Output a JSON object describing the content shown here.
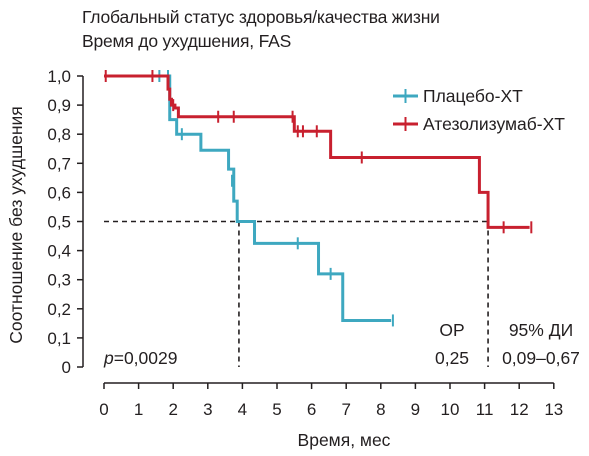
{
  "title": "Глобальный статус здоровья/качества жизни",
  "subtitle": "Время до ухудшения, FAS",
  "chart_data": {
    "type": "line",
    "step": true,
    "xlabel": "Время, мес",
    "ylabel": "Соотношение без ухудшения",
    "xlim": [
      0,
      13
    ],
    "ylim": [
      0,
      1.0
    ],
    "x_ticks": [
      "0",
      "1",
      "2",
      "3",
      "4",
      "5",
      "6",
      "7",
      "8",
      "9",
      "10",
      "11",
      "12",
      "13"
    ],
    "y_ticks": [
      "0",
      "0,1",
      "0,2",
      "0,3",
      "0,4",
      "0,5",
      "0,6",
      "0,7",
      "0,8",
      "0,9",
      "1,0"
    ],
    "median_reference": 0.5,
    "series": [
      {
        "name": "Плацебо-ХТ",
        "color": "#3ea8c0",
        "steps": [
          [
            0,
            1.0
          ],
          [
            1.8,
            1.0
          ],
          [
            1.9,
            0.85
          ],
          [
            2.1,
            0.8
          ],
          [
            2.8,
            0.745
          ],
          [
            3.6,
            0.68
          ],
          [
            3.75,
            0.57
          ],
          [
            3.85,
            0.5
          ],
          [
            4.35,
            0.425
          ],
          [
            6.2,
            0.32
          ],
          [
            6.9,
            0.16
          ],
          [
            8.3,
            0.16
          ]
        ],
        "censored": [
          [
            1.6,
            1.0
          ],
          [
            1.85,
            1.0
          ],
          [
            2.25,
            0.8
          ],
          [
            3.7,
            0.64
          ],
          [
            5.6,
            0.425
          ],
          [
            6.55,
            0.32
          ],
          [
            8.35,
            0.16
          ]
        ]
      },
      {
        "name": "Атезолизумаб-ХТ",
        "color": "#c8202f",
        "steps": [
          [
            0,
            1.0
          ],
          [
            1.8,
            1.0
          ],
          [
            1.85,
            0.955
          ],
          [
            1.9,
            0.92
          ],
          [
            1.95,
            0.9
          ],
          [
            2.05,
            0.89
          ],
          [
            2.15,
            0.86
          ],
          [
            5.5,
            0.81
          ],
          [
            6.55,
            0.72
          ],
          [
            10.85,
            0.6
          ],
          [
            11.1,
            0.48
          ],
          [
            12.3,
            0.48
          ]
        ],
        "censored": [
          [
            0.05,
            1.0
          ],
          [
            1.4,
            1.0
          ],
          [
            1.85,
            0.98
          ],
          [
            2.0,
            0.9
          ],
          [
            3.3,
            0.86
          ],
          [
            3.75,
            0.86
          ],
          [
            5.45,
            0.86
          ],
          [
            5.6,
            0.81
          ],
          [
            5.75,
            0.81
          ],
          [
            6.15,
            0.81
          ],
          [
            7.45,
            0.72
          ],
          [
            11.55,
            0.48
          ],
          [
            12.35,
            0.48
          ]
        ]
      }
    ],
    "median_drops": [
      3.9,
      11.1
    ],
    "annotations": {
      "p_prefix": "p",
      "p_value": "=0,0029",
      "hr_label": "ОР",
      "hr_value": "0,25",
      "ci_label": "95% ДИ",
      "ci_value": "0,09–0,67"
    },
    "legend_position": "top-right"
  }
}
